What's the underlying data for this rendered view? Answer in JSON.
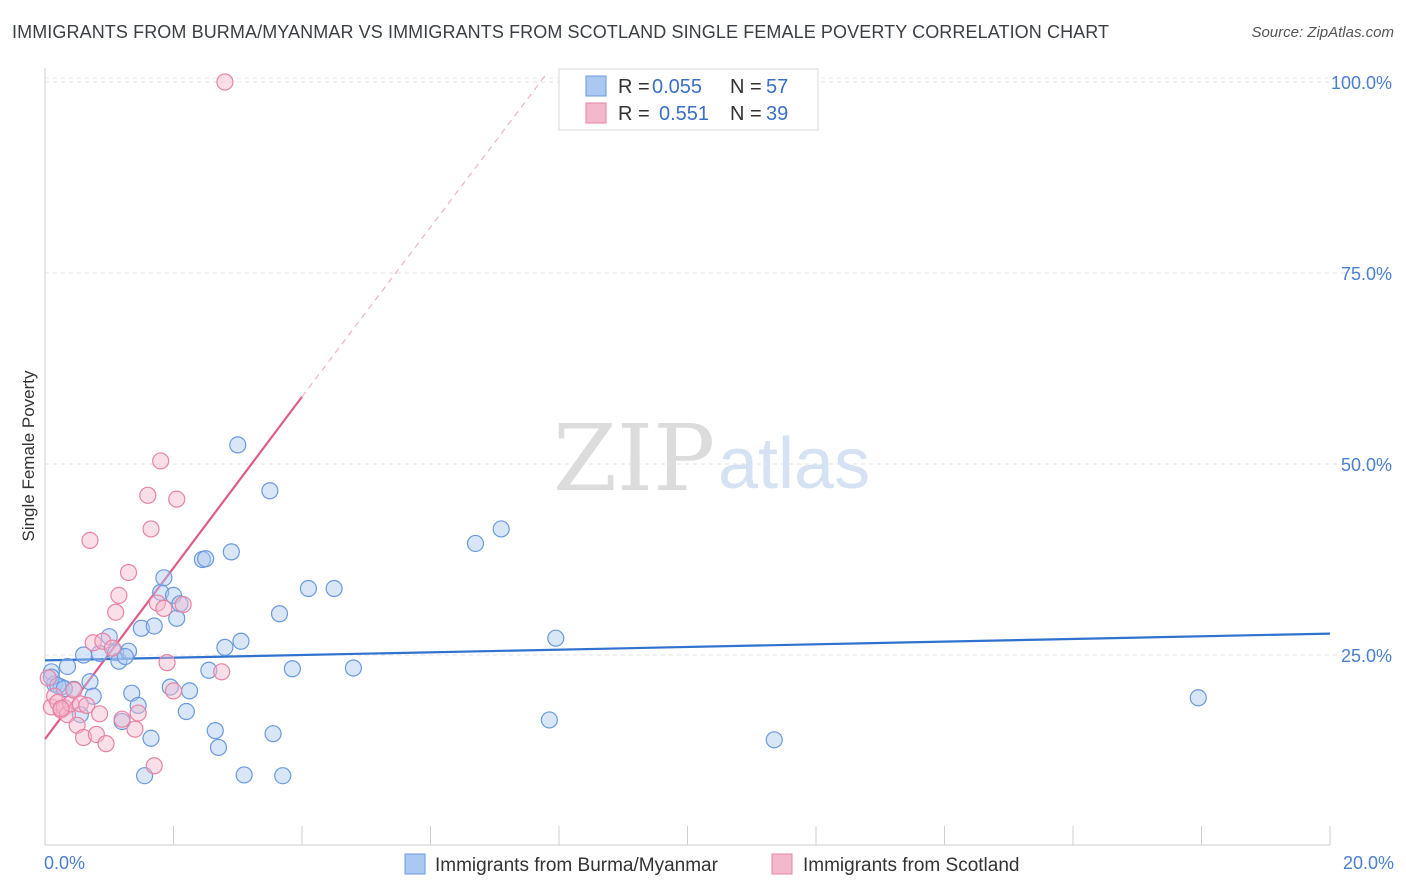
{
  "title": "IMMIGRANTS FROM BURMA/MYANMAR VS IMMIGRANTS FROM SCOTLAND SINGLE FEMALE POVERTY CORRELATION CHART",
  "source": "Source: ZipAtlas.com",
  "watermark": {
    "left": "ZIP",
    "right": "atlas"
  },
  "colors": {
    "blue": "#4a8ad8",
    "blue_fill": "#aac8f0",
    "pink": "#e06090",
    "pink_fill": "#f4b8cc",
    "tick": "#4a7fd0"
  },
  "chart_data": {
    "type": "scatter",
    "title": "IMMIGRANTS FROM BURMA/MYANMAR VS IMMIGRANTS FROM SCOTLAND SINGLE FEMALE POVERTY CORRELATION CHART",
    "xlabel": "",
    "ylabel": "Single Female Poverty",
    "xlim": [
      0,
      20
    ],
    "ylim": [
      0,
      101
    ],
    "x_ticks": [
      {
        "value": 0,
        "label": "0.0%"
      },
      {
        "value": 20,
        "label": "20.0%"
      }
    ],
    "y_ticks": [
      {
        "value": 25,
        "label": "25.0%"
      },
      {
        "value": 50,
        "label": "50.0%"
      },
      {
        "value": 75,
        "label": "75.0%"
      },
      {
        "value": 100,
        "label": "100.0%"
      }
    ],
    "legend": {
      "position": "top-center",
      "entries": [
        {
          "r_label": "R =",
          "r_value": "0.055",
          "n_label": "N =",
          "n_value": "57"
        },
        {
          "r_label": "R =",
          "r_value": "0.551",
          "n_label": "N =",
          "n_value": "39"
        }
      ]
    },
    "series": [
      {
        "name": "Immigrants from Burma/Myanmar",
        "color": "#4a8ad8",
        "trend": {
          "x0": 0,
          "y0": 24.3,
          "x1": 20,
          "y1": 27.8
        },
        "points": [
          [
            0.1,
            22.8
          ],
          [
            0.15,
            21.2
          ],
          [
            0.25,
            20.8
          ],
          [
            0.35,
            23.5
          ],
          [
            0.45,
            20.5
          ],
          [
            0.55,
            17.2
          ],
          [
            0.6,
            25.0
          ],
          [
            0.7,
            21.5
          ],
          [
            0.75,
            19.6
          ],
          [
            0.85,
            25.2
          ],
          [
            1.0,
            27.4
          ],
          [
            1.1,
            25.3
          ],
          [
            1.15,
            24.2
          ],
          [
            1.2,
            16.3
          ],
          [
            1.3,
            25.5
          ],
          [
            1.35,
            20.0
          ],
          [
            1.45,
            18.4
          ],
          [
            1.5,
            28.5
          ],
          [
            1.55,
            9.2
          ],
          [
            1.65,
            14.1
          ],
          [
            1.7,
            28.8
          ],
          [
            1.8,
            33.2
          ],
          [
            1.85,
            35.1
          ],
          [
            1.95,
            20.8
          ],
          [
            2.0,
            32.8
          ],
          [
            2.05,
            29.8
          ],
          [
            2.1,
            31.7
          ],
          [
            2.2,
            17.6
          ],
          [
            2.25,
            20.3
          ],
          [
            2.45,
            37.5
          ],
          [
            2.5,
            37.6
          ],
          [
            2.55,
            23.0
          ],
          [
            2.65,
            15.1
          ],
          [
            2.7,
            12.9
          ],
          [
            2.8,
            26.0
          ],
          [
            2.9,
            38.5
          ],
          [
            3.0,
            52.5
          ],
          [
            3.05,
            26.8
          ],
          [
            3.1,
            9.3
          ],
          [
            3.5,
            46.5
          ],
          [
            3.55,
            14.7
          ],
          [
            3.65,
            30.4
          ],
          [
            3.7,
            9.2
          ],
          [
            3.85,
            23.2
          ],
          [
            4.1,
            33.7
          ],
          [
            4.5,
            33.7
          ],
          [
            4.8,
            23.3
          ],
          [
            6.7,
            39.6
          ],
          [
            7.1,
            41.5
          ],
          [
            7.85,
            16.5
          ],
          [
            7.95,
            27.2
          ],
          [
            11.35,
            13.9
          ],
          [
            17.95,
            19.4
          ],
          [
            0.1,
            22.1
          ],
          [
            0.2,
            21.0
          ],
          [
            0.3,
            20.6
          ],
          [
            1.25,
            24.8
          ]
        ]
      },
      {
        "name": "Immigrants from Scotland",
        "color": "#e06090",
        "trend": {
          "x0": 0,
          "y0": 14.0,
          "x1": 4.0,
          "y1": 58.8
        },
        "trend_dashed": {
          "x0": 4.0,
          "y0": 58.8,
          "x1": 7.8,
          "y1": 101.0
        },
        "points": [
          [
            0.05,
            22.0
          ],
          [
            0.1,
            18.2
          ],
          [
            0.15,
            19.6
          ],
          [
            0.2,
            18.8
          ],
          [
            0.25,
            17.8
          ],
          [
            0.3,
            18.1
          ],
          [
            0.35,
            17.2
          ],
          [
            0.4,
            18.6
          ],
          [
            0.45,
            20.4
          ],
          [
            0.5,
            15.8
          ],
          [
            0.55,
            18.6
          ],
          [
            0.6,
            14.2
          ],
          [
            0.65,
            18.4
          ],
          [
            0.7,
            40.0
          ],
          [
            0.75,
            26.6
          ],
          [
            0.8,
            14.6
          ],
          [
            0.85,
            17.3
          ],
          [
            0.9,
            26.8
          ],
          [
            0.95,
            13.4
          ],
          [
            1.05,
            25.9
          ],
          [
            1.1,
            30.6
          ],
          [
            1.15,
            32.8
          ],
          [
            1.2,
            16.6
          ],
          [
            1.3,
            35.8
          ],
          [
            1.4,
            15.3
          ],
          [
            1.45,
            17.4
          ],
          [
            1.6,
            45.9
          ],
          [
            1.65,
            41.5
          ],
          [
            1.7,
            10.5
          ],
          [
            1.75,
            31.8
          ],
          [
            1.8,
            50.4
          ],
          [
            1.85,
            31.1
          ],
          [
            1.9,
            24.0
          ],
          [
            2.0,
            20.3
          ],
          [
            2.05,
            45.4
          ],
          [
            2.15,
            31.6
          ],
          [
            2.75,
            22.8
          ],
          [
            2.8,
            100.0
          ],
          [
            0.25,
            18.0
          ]
        ]
      }
    ]
  }
}
